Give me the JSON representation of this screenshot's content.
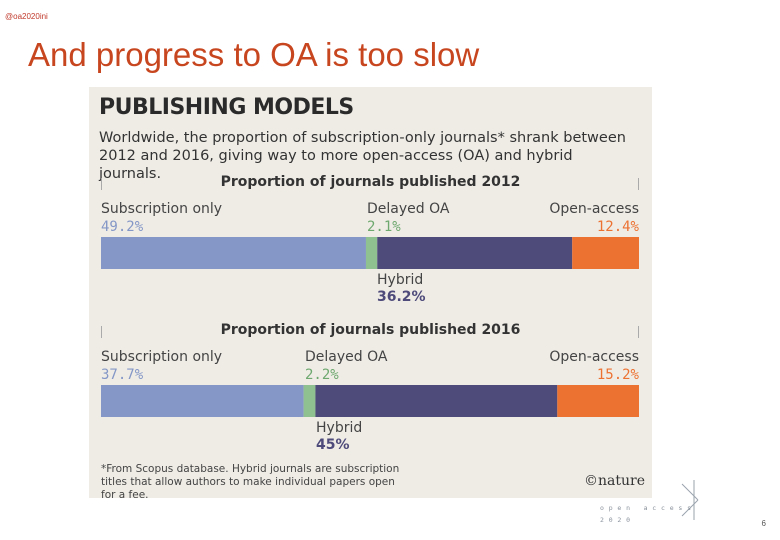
{
  "slide": {
    "handle": "@oa2020ini",
    "title": "And progress to OA is too slow",
    "page_number": "6",
    "logo_text": "open access 2020"
  },
  "figure": {
    "title": "PUBLISHING MODELS",
    "subtitle": "Worldwide, the proportion of subscription-only journals* shrank between 2012 and 2016, giving way to more open-access (OA) and hybrid journals.",
    "footnote": "*From Scopus database. Hybrid journals are subscription titles that allow authors to make individual papers open for a fee.",
    "credit": "©nature"
  },
  "chart_data": [
    {
      "type": "bar",
      "title": "Proportion of journals published 2012",
      "categories": [
        "Subscription only",
        "Delayed OA",
        "Hybrid",
        "Open-access"
      ],
      "values": [
        49.2,
        2.1,
        36.2,
        12.4
      ],
      "value_labels": [
        "49.2%",
        "2.1%",
        "36.2%",
        "12.4%"
      ],
      "colors": [
        "#8497c6",
        "#8fc08f",
        "#4e4a7a",
        "#ec7232"
      ],
      "stacked": true
    },
    {
      "type": "bar",
      "title": "Proportion of journals published 2016",
      "categories": [
        "Subscription only",
        "Delayed OA",
        "Hybrid",
        "Open-access"
      ],
      "values": [
        37.7,
        2.2,
        45,
        15.2
      ],
      "value_labels": [
        "37.7%",
        "2.2%",
        "45%",
        "15.2%"
      ],
      "colors": [
        "#8497c6",
        "#8fc08f",
        "#4e4a7a",
        "#ec7232"
      ],
      "stacked": true
    }
  ]
}
